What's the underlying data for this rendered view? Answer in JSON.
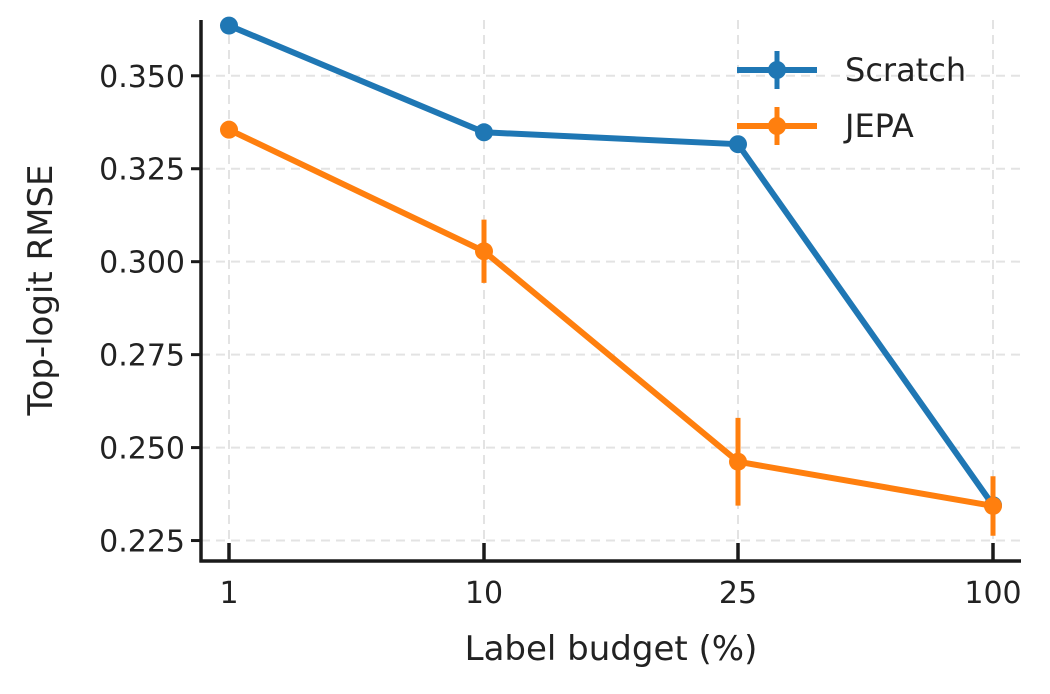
{
  "chart_data": {
    "type": "line",
    "title": "",
    "xlabel": "Label budget (%)",
    "ylabel": "Top-logit RMSE",
    "categories": [
      "1",
      "10",
      "25",
      "100"
    ],
    "yticks": [
      "0.225",
      "0.250",
      "0.275",
      "0.300",
      "0.325",
      "0.350"
    ],
    "ylim": [
      0.2195,
      0.365
    ],
    "grid": true,
    "legend_position": "top-right",
    "series": [
      {
        "name": "Scratch",
        "color": "#1f77b4",
        "values": [
          0.3635,
          0.3348,
          0.3316,
          0.2345
        ],
        "errors": [
          0.0008,
          0.0012,
          0.001,
          0.001
        ]
      },
      {
        "name": "JEPA",
        "color": "#ff7f0e",
        "values": [
          0.3355,
          0.3028,
          0.2462,
          0.2343
        ],
        "errors": [
          0.0015,
          0.0085,
          0.0118,
          0.008
        ]
      }
    ]
  }
}
